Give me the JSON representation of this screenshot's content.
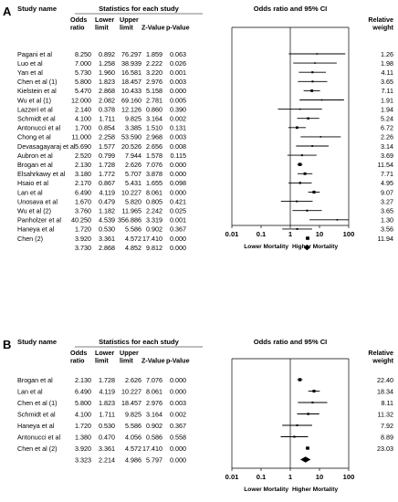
{
  "chart_data": [
    {
      "type": "forest",
      "panel_label": "A",
      "headers": {
        "study": "Study name",
        "stats_group": "Statistics for each study",
        "odds_ratio": "Odds ratio",
        "lower": "Lower limit",
        "upper": "Upper limit",
        "z": "Z-Value",
        "p": "p-Value",
        "plot": "Odds ratio and 95% CI",
        "weight": "Relative weight"
      },
      "x_scale": "log",
      "xlim": [
        0.01,
        100
      ],
      "x_ticks": [
        "0.01",
        "0.1",
        "1",
        "10",
        "100"
      ],
      "left_label": "Lower Mortality",
      "right_label": "Higher Mortality",
      "studies": [
        {
          "name": "Pagani et al",
          "or": "8.250",
          "lower": "0.892",
          "upper": "76.297",
          "z": "1.859",
          "p": "0.063",
          "weight": "1.26"
        },
        {
          "name": "Luo et al",
          "or": "7.000",
          "lower": "1.258",
          "upper": "38.939",
          "z": "2.222",
          "p": "0.026",
          "weight": "1.98"
        },
        {
          "name": "Yan et al",
          "or": "5.730",
          "lower": "1.960",
          "upper": "16.581",
          "z": "3.220",
          "p": "0.001",
          "weight": "4.11"
        },
        {
          "name": "Chen et al (1)",
          "or": "5.800",
          "lower": "1.823",
          "upper": "18.457",
          "z": "2.976",
          "p": "0.003",
          "weight": "3.65"
        },
        {
          "name": "Kielstein et al",
          "or": "5.470",
          "lower": "2.868",
          "upper": "10.433",
          "z": "5.158",
          "p": "0.000",
          "weight": "7.11"
        },
        {
          "name": "Wu et al (1)",
          "or": "12.000",
          "lower": "2.082",
          "upper": "69.160",
          "z": "2.781",
          "p": "0.005",
          "weight": "1.91"
        },
        {
          "name": "Lazzeri et al",
          "or": "2.140",
          "lower": "0.378",
          "upper": "12.126",
          "z": "0.860",
          "p": "0.390",
          "weight": "1.94"
        },
        {
          "name": "Schmidt et al",
          "or": "4.100",
          "lower": "1.711",
          "upper": "9.825",
          "z": "3.164",
          "p": "0.002",
          "weight": "5.24"
        },
        {
          "name": "Antonucci et al",
          "or": "1.700",
          "lower": "0.854",
          "upper": "3.385",
          "z": "1.510",
          "p": "0.131",
          "weight": "6.72"
        },
        {
          "name": "Chong et al",
          "or": "11.000",
          "lower": "2.258",
          "upper": "53.590",
          "z": "2.968",
          "p": "0.003",
          "weight": "2.26"
        },
        {
          "name": "Devasagayaraj et al",
          "or": "5.690",
          "lower": "1.577",
          "upper": "20.526",
          "z": "2.656",
          "p": "0.008",
          "weight": "3.14"
        },
        {
          "name": "Aubron et al",
          "or": "2.520",
          "lower": "0.799",
          "upper": "7.944",
          "z": "1.578",
          "p": "0.115",
          "weight": "3.69"
        },
        {
          "name": "Brogan et al",
          "or": "2.130",
          "lower": "1.728",
          "upper": "2.626",
          "z": "7.076",
          "p": "0.000",
          "weight": "11.54"
        },
        {
          "name": "Elsahrkawy et al",
          "or": "3.180",
          "lower": "1.772",
          "upper": "5.707",
          "z": "3.878",
          "p": "0.000",
          "weight": "7.71"
        },
        {
          "name": "Hsaio et al",
          "or": "2.170",
          "lower": "0.867",
          "upper": "5.431",
          "z": "1.655",
          "p": "0.098",
          "weight": "4.95"
        },
        {
          "name": "Lan et al",
          "or": "6.490",
          "lower": "4.119",
          "upper": "10.227",
          "z": "8.061",
          "p": "0.000",
          "weight": "9.07"
        },
        {
          "name": "Unosava et al",
          "or": "1.670",
          "lower": "0.479",
          "upper": "5.820",
          "z": "0.805",
          "p": "0.421",
          "weight": "3.27"
        },
        {
          "name": "Wu et al (2)",
          "or": "3.760",
          "lower": "1.182",
          "upper": "11.965",
          "z": "2.242",
          "p": "0.025",
          "weight": "3.65"
        },
        {
          "name": "Panholzer et al",
          "or": "40.250",
          "lower": "4.539",
          "upper": "356.886",
          "z": "3.319",
          "p": "0.001",
          "weight": "1.30"
        },
        {
          "name": "Haneya et al",
          "or": "1.720",
          "lower": "0.530",
          "upper": "5.586",
          "z": "0.902",
          "p": "0.367",
          "weight": "3.56"
        },
        {
          "name": "Chen (2)",
          "or": "3.920",
          "lower": "3.361",
          "upper": "4.572",
          "z": "17.410",
          "p": "0.000",
          "weight": "11.94"
        }
      ],
      "summary": {
        "or": "3.730",
        "lower": "2.868",
        "upper": "4.852",
        "z": "9.812",
        "p": "0.000"
      }
    },
    {
      "type": "forest",
      "panel_label": "B",
      "headers": {
        "study": "Study name",
        "stats_group": "Statistics for each study",
        "odds_ratio": "Odds ratio",
        "lower": "Lower limit",
        "upper": "Upper limit",
        "z": "Z-Value",
        "p": "p-Value",
        "plot": "Odds ratio and 95% CI",
        "weight": "Relative weight"
      },
      "x_scale": "log",
      "xlim": [
        0.01,
        100
      ],
      "x_ticks": [
        "0.01",
        "0.1",
        "1",
        "10",
        "100"
      ],
      "left_label": "Lower Mortality",
      "right_label": "Higher Mortality",
      "studies": [
        {
          "name": "Brogan et al",
          "or": "2.130",
          "lower": "1.728",
          "upper": "2.626",
          "z": "7.076",
          "p": "0.000",
          "weight": "22.40"
        },
        {
          "name": "Lan et al",
          "or": "6.490",
          "lower": "4.119",
          "upper": "10.227",
          "z": "8.061",
          "p": "0.000",
          "weight": "18.34"
        },
        {
          "name": "Chen et al (1)",
          "or": "5.800",
          "lower": "1.823",
          "upper": "18.457",
          "z": "2.976",
          "p": "0.003",
          "weight": "8.11"
        },
        {
          "name": "Schmidt et al",
          "or": "4.100",
          "lower": "1.711",
          "upper": "9.825",
          "z": "3.164",
          "p": "0.002",
          "weight": "11.32"
        },
        {
          "name": "Haneya et al",
          "or": "1.720",
          "lower": "0.530",
          "upper": "5.586",
          "z": "0.902",
          "p": "0.367",
          "weight": "7.92"
        },
        {
          "name": "Antonucci et al",
          "or": "1.380",
          "lower": "0.470",
          "upper": "4.056",
          "z": "0.586",
          "p": "0.558",
          "weight": "8.89"
        },
        {
          "name": "Chen et al (2)",
          "or": "3.920",
          "lower": "3.361",
          "upper": "4.572",
          "z": "17.410",
          "p": "0.000",
          "weight": "23.03"
        }
      ],
      "summary": {
        "or": "3.323",
        "lower": "2.214",
        "upper": "4.986",
        "z": "5.797",
        "p": "0.000"
      }
    }
  ]
}
